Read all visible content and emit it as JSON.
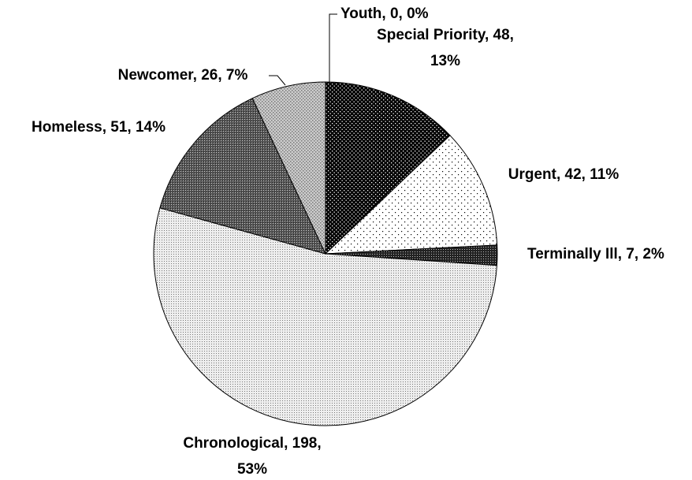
{
  "chart_data": {
    "type": "pie",
    "labels": [
      "Youth, 0, 0%",
      "Special Priority, 48,\n13%",
      "Urgent, 42, 11%",
      "Terminally Ill, 7, 2%",
      "Chronological, 198,\n53%",
      "Homeless, 51, 14%",
      "Newcomer, 26, 7%"
    ],
    "values": [
      0,
      48,
      42,
      7,
      198,
      51,
      26
    ]
  }
}
